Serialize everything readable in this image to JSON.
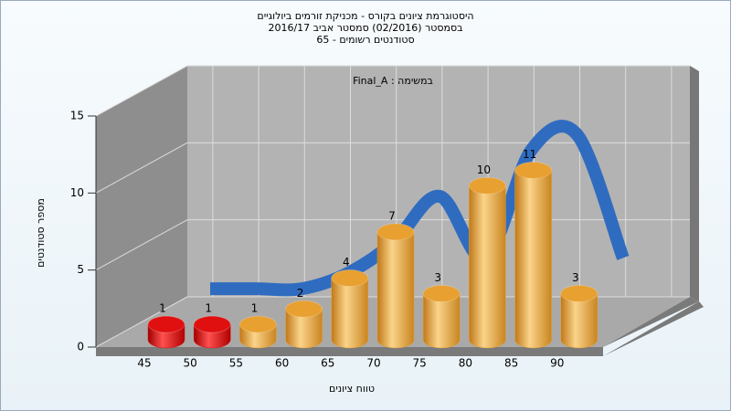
{
  "chart_data": {
    "type": "bar3d",
    "title": [
      "היסטוגרמת ציונים בקורס - מכניקת זורמים ביולוגיים",
      "בסמסטר (02/2016) סמסטר אביב 2016/17",
      "סטודנטים רשומים - 65"
    ],
    "subtitle": "Final_A : במשימה",
    "x_label": "טווח ציונים",
    "y_label": "מספר סטודנטים",
    "categories": [
      "45",
      "50",
      "55",
      "60",
      "65",
      "70",
      "75",
      "80",
      "85",
      "90"
    ],
    "values": [
      1,
      1,
      1,
      2,
      4,
      7,
      3,
      10,
      11,
      3
    ],
    "colors": [
      "#e01010",
      "#e01010",
      "#e8a030",
      "#e8a030",
      "#e8a030",
      "#e8a030",
      "#e8a030",
      "#e8a030",
      "#e8a030",
      "#e8a030"
    ],
    "line_color": "#2f6cc0",
    "ylim": [
      0,
      15
    ],
    "yticks": [
      0,
      5,
      10,
      15
    ],
    "grid": true
  }
}
